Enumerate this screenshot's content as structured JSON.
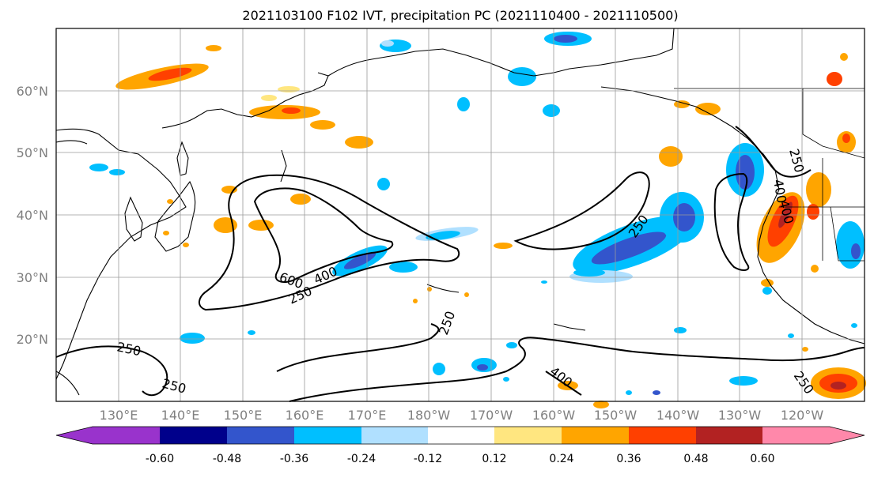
{
  "title": "2021103100 F102 IVT, precipitation PC (2021110400 - 2021110500)",
  "axes": {
    "lon_ticks": [
      "130°E",
      "140°E",
      "150°E",
      "160°E",
      "170°E",
      "180°W",
      "170°W",
      "160°W",
      "150°W",
      "140°W",
      "130°W",
      "120°W"
    ],
    "lat_ticks": [
      "60°N",
      "50°N",
      "40°N",
      "30°N",
      "20°N"
    ],
    "lon_range": [
      120,
      250
    ],
    "lat_range": [
      10,
      70
    ]
  },
  "contour_labels": [
    "250",
    "400",
    "600",
    "400",
    "250",
    "250",
    "250",
    "250",
    "400",
    "250",
    "400",
    "250",
    "250"
  ],
  "colorbar": {
    "colors": [
      "#9933cc",
      "#00008b",
      "#3355cc",
      "#00bfff",
      "#b0e0ff",
      "#ffffff",
      "#ffe680",
      "#ffa500",
      "#ff4000",
      "#b22222",
      "#ff88aa"
    ],
    "tick_labels": [
      "-0.60",
      "-0.48",
      "-0.36",
      "-0.24",
      "-0.12",
      "0.12",
      "0.24",
      "0.36",
      "0.48",
      "0.60"
    ]
  }
}
